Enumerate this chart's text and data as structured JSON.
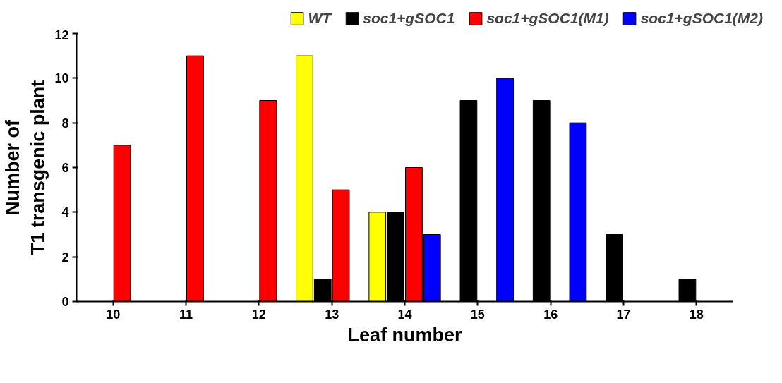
{
  "chart_data": {
    "type": "bar",
    "xlabel": "Leaf number",
    "ylabel": "Number of\nT1 transgenic plant",
    "categories": [
      "10",
      "11",
      "12",
      "13",
      "14",
      "15",
      "16",
      "17",
      "18"
    ],
    "series": [
      {
        "name": "WT",
        "color": "#ffff00",
        "values": [
          null,
          null,
          null,
          11,
          4,
          null,
          null,
          null,
          null
        ]
      },
      {
        "name": "soc1+gSOC1",
        "color": "#000000",
        "values": [
          null,
          null,
          null,
          1,
          4,
          9,
          9,
          3,
          1
        ]
      },
      {
        "name": "soc1+gSOC1(M1)",
        "color": "#ff0000",
        "values": [
          7,
          11,
          9,
          5,
          6,
          null,
          null,
          null,
          null
        ]
      },
      {
        "name": "soc1+gSOC1(M2)",
        "color": "#0000ff",
        "values": [
          null,
          null,
          null,
          null,
          3,
          10,
          8,
          null,
          null
        ]
      }
    ],
    "ylim": [
      0,
      12
    ],
    "yticks": [
      0,
      2,
      4,
      6,
      8,
      10,
      12
    ],
    "grid": false,
    "legend": "top"
  }
}
